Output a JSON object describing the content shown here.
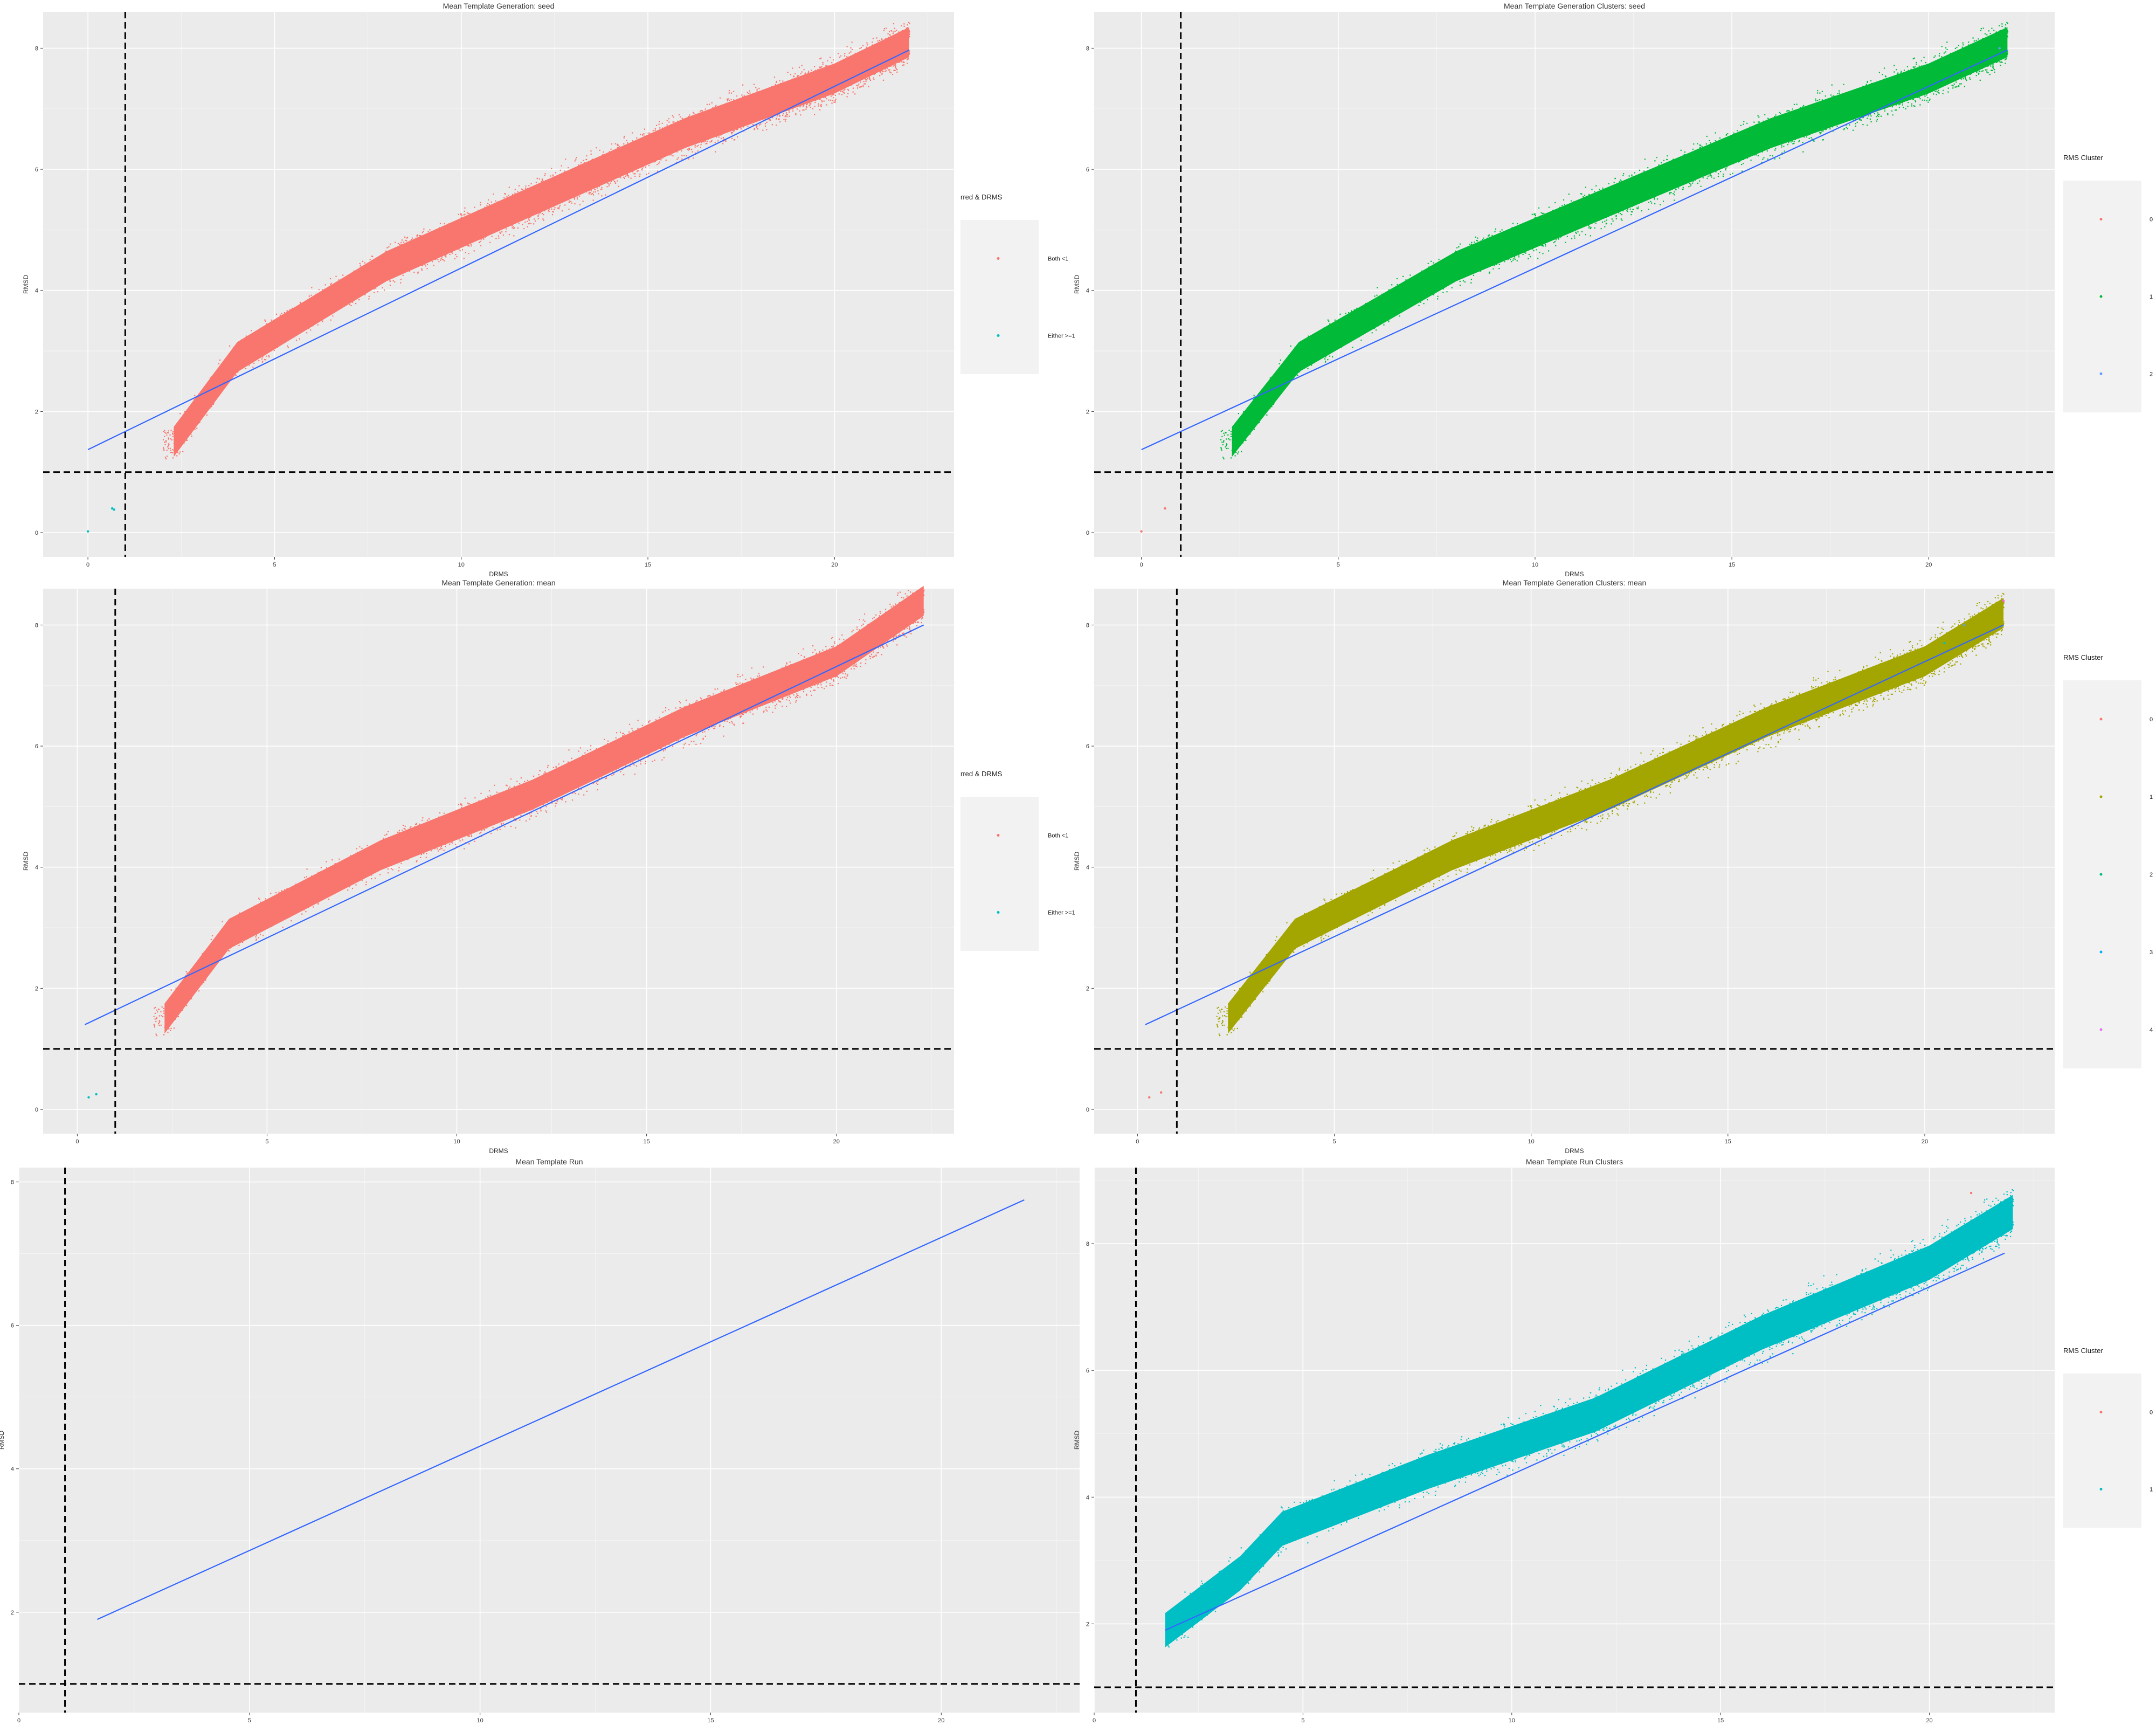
{
  "colors": {
    "panel_bg": "#ebebeb",
    "grid": "#ffffff",
    "fit_line": "#3366ff",
    "salmon": "#f8766d",
    "green": "#00ba38",
    "olive": "#a3a500",
    "cyan": "#00bfc4",
    "blue_pt": "#619cff",
    "magenta": "#f564e3",
    "teal": "#00bfc4",
    "red": "#f8766d"
  },
  "chart_data": [
    {
      "id": "p1",
      "type": "scatter",
      "title": "Mean Template Generation: seed",
      "xlabel": "DRMS",
      "ylabel": "RMSD",
      "xlim": [
        -1.2,
        23.2
      ],
      "ylim": [
        -0.4,
        8.6
      ],
      "x_ticks": [
        0,
        5,
        10,
        15,
        20
      ],
      "y_ticks": [
        0,
        2,
        4,
        6,
        8
      ],
      "vline": 1,
      "hline": 1,
      "fit": {
        "x": [
          0,
          22
        ],
        "y": [
          1.37,
          7.97
        ]
      },
      "cloud": {
        "x_start": 2.0,
        "x_end": 22.0,
        "points": [
          [
            2.3,
            1.5
          ],
          [
            4,
            2.9
          ],
          [
            8,
            4.4
          ],
          [
            12,
            5.5
          ],
          [
            16,
            6.6
          ],
          [
            20,
            7.5
          ],
          [
            22,
            8.1
          ]
        ],
        "spread": 0.55,
        "color": "#f8766d"
      },
      "extra_points": [
        {
          "x": 0.7,
          "y": 0.38,
          "color": "#00bfc4"
        },
        {
          "x": 0.65,
          "y": 0.4,
          "color": "#00bfc4"
        },
        {
          "x": 0.0,
          "y": 0.02,
          "color": "#00bfc4"
        }
      ],
      "legend": {
        "title": "rred & DRMS",
        "items": [
          {
            "label": "Both <1",
            "color": "#f8766d"
          },
          {
            "label": "Either >=1",
            "color": "#00bfc4"
          }
        ]
      }
    },
    {
      "id": "p2",
      "type": "scatter",
      "title": "Mean Template Generation Clusters: seed",
      "xlabel": "DRMS",
      "ylabel": "RMSD",
      "xlim": [
        -1.2,
        23.2
      ],
      "ylim": [
        -0.4,
        8.6
      ],
      "x_ticks": [
        0,
        5,
        10,
        15,
        20
      ],
      "y_ticks": [
        0,
        2,
        4,
        6,
        8
      ],
      "vline": 1,
      "hline": 1,
      "fit": {
        "x": [
          0,
          22
        ],
        "y": [
          1.37,
          7.97
        ]
      },
      "cloud": {
        "x_start": 2.0,
        "x_end": 22.0,
        "points": [
          [
            2.3,
            1.5
          ],
          [
            4,
            2.9
          ],
          [
            8,
            4.4
          ],
          [
            12,
            5.5
          ],
          [
            16,
            6.6
          ],
          [
            20,
            7.5
          ],
          [
            22,
            8.1
          ]
        ],
        "spread": 0.55,
        "color": "#00ba38"
      },
      "extra_points": [
        {
          "x": 0.6,
          "y": 0.4,
          "color": "#f8766d"
        },
        {
          "x": 0.0,
          "y": 0.02,
          "color": "#f8766d"
        },
        {
          "x": 21.8,
          "y": 8.0,
          "color": "#619cff"
        }
      ],
      "legend": {
        "title": "RMS Cluster",
        "items": [
          {
            "label": "0",
            "color": "#f8766d"
          },
          {
            "label": "1",
            "color": "#00ba38"
          },
          {
            "label": "2",
            "color": "#619cff"
          }
        ]
      }
    },
    {
      "id": "p3",
      "type": "scatter",
      "title": "Mean Template Generation: mean",
      "xlabel": "DRMS",
      "ylabel": "RMSD",
      "xlim": [
        -0.9,
        23.1
      ],
      "ylim": [
        -0.4,
        8.6
      ],
      "x_ticks": [
        0,
        5,
        10,
        15,
        20
      ],
      "y_ticks": [
        0,
        2,
        4,
        6,
        8
      ],
      "vline": 1,
      "hline": 1,
      "fit": {
        "x": [
          0.2,
          22.3
        ],
        "y": [
          1.4,
          8.0
        ]
      },
      "cloud": {
        "x_start": 2.0,
        "x_end": 22.3,
        "points": [
          [
            2.3,
            1.5
          ],
          [
            4,
            2.9
          ],
          [
            8,
            4.2
          ],
          [
            12,
            5.2
          ],
          [
            16,
            6.4
          ],
          [
            20,
            7.4
          ],
          [
            22.3,
            8.4
          ]
        ],
        "spread": 0.55,
        "color": "#f8766d"
      },
      "extra_points": [
        {
          "x": 0.3,
          "y": 0.2,
          "color": "#00bfc4"
        },
        {
          "x": 0.5,
          "y": 0.25,
          "color": "#00bfc4"
        }
      ],
      "legend": {
        "title": "rred & DRMS",
        "items": [
          {
            "label": "Both <1",
            "color": "#f8766d"
          },
          {
            "label": "Either >=1",
            "color": "#00bfc4"
          }
        ]
      }
    },
    {
      "id": "p4",
      "type": "scatter",
      "title": "Mean Template Generation Clusters: mean",
      "xlabel": "DRMS",
      "ylabel": "RMSD",
      "xlim": [
        -1.1,
        23.3
      ],
      "ylim": [
        -0.4,
        8.6
      ],
      "x_ticks": [
        0,
        5,
        10,
        15,
        20
      ],
      "y_ticks": [
        0,
        2,
        4,
        6,
        8
      ],
      "vline": 1,
      "hline": 1,
      "fit": {
        "x": [
          0.2,
          22
        ],
        "y": [
          1.4,
          8.0
        ]
      },
      "cloud": {
        "x_start": 2.0,
        "x_end": 22.0,
        "points": [
          [
            2.3,
            1.5
          ],
          [
            4,
            2.9
          ],
          [
            8,
            4.2
          ],
          [
            12,
            5.2
          ],
          [
            16,
            6.4
          ],
          [
            20,
            7.4
          ],
          [
            22,
            8.2
          ]
        ],
        "spread": 0.55,
        "color": "#a3a500"
      },
      "extra_points": [
        {
          "x": 0.3,
          "y": 0.2,
          "color": "#f8766d"
        },
        {
          "x": 0.6,
          "y": 0.28,
          "color": "#f8766d"
        },
        {
          "x": 22.0,
          "y": 8.4,
          "color": "#f564e3"
        },
        {
          "x": 20.5,
          "y": 7.7,
          "color": "#00bfc4"
        },
        {
          "x": 21.0,
          "y": 8.0,
          "color": "#619cff"
        }
      ],
      "legend": {
        "title": "RMS Cluster",
        "items": [
          {
            "label": "0",
            "color": "#f8766d"
          },
          {
            "label": "1",
            "color": "#a3a500"
          },
          {
            "label": "2",
            "color": "#00bf7d"
          },
          {
            "label": "3",
            "color": "#00b0f6"
          },
          {
            "label": "4",
            "color": "#e76bf3"
          }
        ]
      }
    },
    {
      "id": "p5",
      "type": "line",
      "title": "Mean Template Run",
      "xlabel": "DRMS",
      "ylabel": "RMSD",
      "xlim": [
        0,
        23
      ],
      "ylim": [
        0.6,
        8.2
      ],
      "x_ticks": [
        0,
        5,
        10,
        15,
        20
      ],
      "y_ticks": [
        2,
        4,
        6,
        8
      ],
      "vline": 1,
      "hline": 1,
      "fit": {
        "x": [
          1.7,
          21.8
        ],
        "y": [
          1.9,
          7.75
        ]
      },
      "cloud": null,
      "extra_points": [],
      "legend": null
    },
    {
      "id": "p6",
      "type": "scatter",
      "title": "Mean Template Run Clusters",
      "xlabel": "DRMS",
      "ylabel": "RMSD",
      "xlim": [
        0,
        23
      ],
      "ylim": [
        0.6,
        9.2
      ],
      "x_ticks": [
        0,
        5,
        10,
        15,
        20
      ],
      "y_ticks": [
        2,
        4,
        6,
        8
      ],
      "vline": 1,
      "hline": 1,
      "fit": {
        "x": [
          1.7,
          21.8
        ],
        "y": [
          1.9,
          7.85
        ]
      },
      "cloud": {
        "x_start": 1.7,
        "x_end": 22.0,
        "points": [
          [
            1.7,
            1.9
          ],
          [
            3.5,
            2.8
          ],
          [
            4.5,
            3.5
          ],
          [
            8,
            4.4
          ],
          [
            12,
            5.3
          ],
          [
            16,
            6.6
          ],
          [
            20,
            7.7
          ],
          [
            22,
            8.5
          ]
        ],
        "spread": 0.6,
        "color": "#00bfc4"
      },
      "extra_points": [
        {
          "x": 21.0,
          "y": 8.8,
          "color": "#f8766d"
        }
      ],
      "legend": {
        "title": "RMS Cluster",
        "items": [
          {
            "label": "0",
            "color": "#f8766d"
          },
          {
            "label": "1",
            "color": "#00bfc4"
          }
        ]
      }
    }
  ]
}
